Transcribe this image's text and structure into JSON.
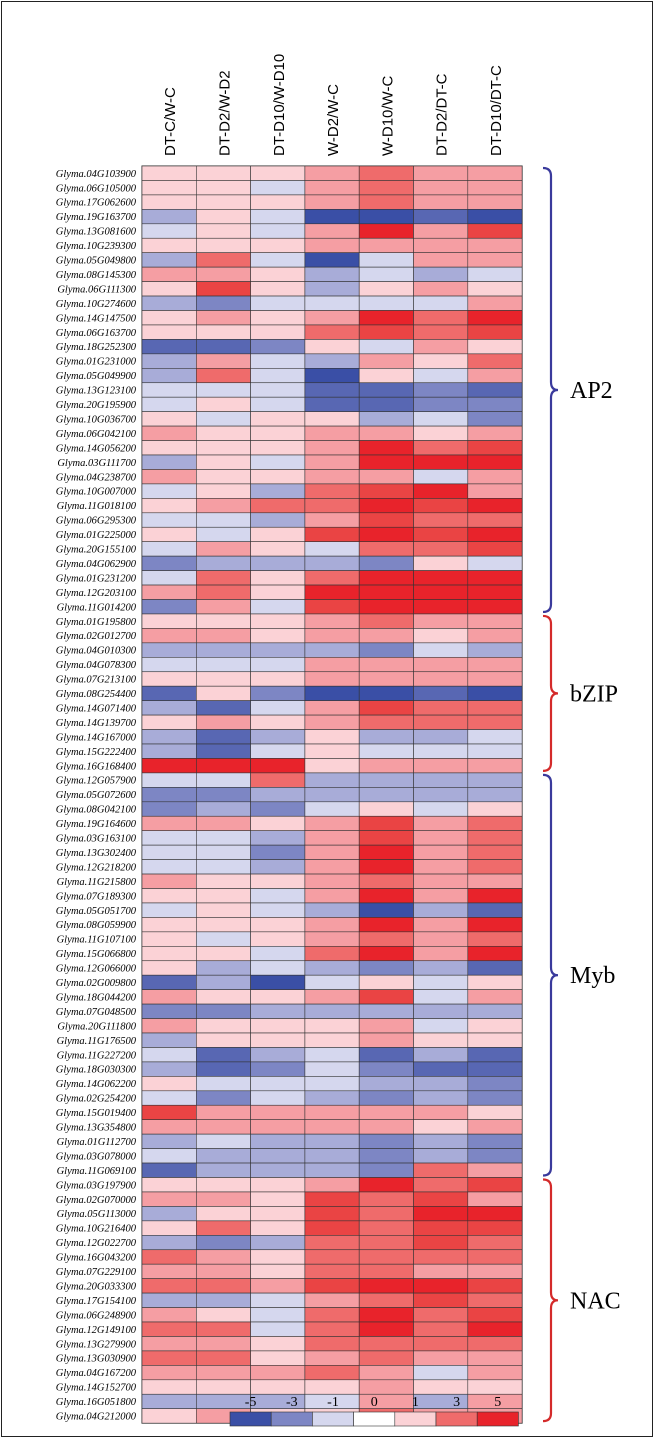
{
  "chart_data": {
    "type": "heatmap",
    "title": "",
    "columns": [
      "DT-C/W-C",
      "DT-D2/W-D2",
      "DT-D10/W-D10",
      "W-D2/W-C",
      "W-D10/W-C",
      "DT-D2/DT-C",
      "DT-D10/DT-C"
    ],
    "rows": [
      "Glyma.04G103900",
      "Glyma.06G105000",
      "Glyma.17G062600",
      "Glyma.19G163700",
      "Glyma.13G081600",
      "Glyma.10G239300",
      "Glyma.05G049800",
      "Glyma.08G145300",
      "Glyma.06G111300",
      "Glyma.10G274600",
      "Glyma.14G147500",
      "Glyma.06G163700",
      "Glyma.18G252300",
      "Glyma.01G231000",
      "Glyma.05G049900",
      "Glyma.13G123100",
      "Glyma.20G195900",
      "Glyma.10G036700",
      "Glyma.06G042100",
      "Glyma.14G056200",
      "Glyma.03G111700",
      "Glyma.04G238700",
      "Glyma.10G007000",
      "Glyma.11G018100",
      "Glyma.06G295300",
      "Glyma.01G225000",
      "Glyma.20G155100",
      "Glyma.04G062900",
      "Glyma.01G231200",
      "Glyma.12G203100",
      "Glyma.11G014200",
      "Glyma.01G195800",
      "Glyma.02G012700",
      "Glyma.04G010300",
      "Glyma.04G078300",
      "Glyma.07G213100",
      "Glyma.08G254400",
      "Glyma.14G071400",
      "Glyma.14G139700",
      "Glyma.14G167000",
      "Glyma.15G222400",
      "Glyma.16G168400",
      "Glyma.12G057900",
      "Glyma.05G072600",
      "Glyma.08G042100",
      "Glyma.19G164600",
      "Glyma.03G163100",
      "Glyma.13G302400",
      "Glyma.12G218200",
      "Glyma.11G215800",
      "Glyma.07G189300",
      "Glyma.05G051700",
      "Glyma.08G059900",
      "Glyma.11G107100",
      "Glyma.15G066800",
      "Glyma.12G066000",
      "Glyma.02G009800",
      "Glyma.18G044200",
      "Glyma.07G048500",
      "Glyma.20G111800",
      "Glyma.11G176500",
      "Glyma.11G227200",
      "Glyma.18G030300",
      "Glyma.14G062200",
      "Glyma.02G254200",
      "Glyma.15G019400",
      "Glyma.13G354800",
      "Glyma.01G112700",
      "Glyma.03G078000",
      "Glyma.11G069100",
      "Glyma.03G197900",
      "Glyma.02G070000",
      "Glyma.05G113000",
      "Glyma.10G216400",
      "Glyma.12G022700",
      "Glyma.16G043200",
      "Glyma.07G229100",
      "Glyma.20G033300",
      "Glyma.17G154100",
      "Glyma.06G248900",
      "Glyma.12G149100",
      "Glyma.13G279900",
      "Glyma.13G030900",
      "Glyma.04G167200",
      "Glyma.14G152700",
      "Glyma.16G051800",
      "Glyma.04G212000"
    ],
    "values": [
      [
        1,
        1,
        1,
        2,
        3,
        2,
        2
      ],
      [
        1,
        1,
        -1,
        2,
        3,
        2,
        2
      ],
      [
        1,
        1,
        1,
        2,
        3,
        2,
        2
      ],
      [
        -2,
        1,
        -1,
        -5,
        -5,
        -4,
        -5
      ],
      [
        -1,
        1,
        -1,
        2,
        5,
        2,
        4
      ],
      [
        1,
        1,
        1,
        2,
        2,
        2,
        2
      ],
      [
        -2,
        3,
        -1,
        -5,
        -1,
        2,
        2
      ],
      [
        2,
        2,
        1,
        -2,
        -1,
        -2,
        -1
      ],
      [
        1,
        4,
        1,
        -2,
        1,
        2,
        1
      ],
      [
        -2,
        -3,
        -1,
        -1,
        -1,
        -1,
        2
      ],
      [
        1,
        2,
        1,
        2,
        5,
        3,
        5
      ],
      [
        1,
        1,
        1,
        3,
        4,
        3,
        4
      ],
      [
        -4,
        -4,
        -3,
        1,
        -1,
        2,
        1
      ],
      [
        -2,
        2,
        -1,
        -2,
        2,
        1,
        3
      ],
      [
        -2,
        3,
        -1,
        -5,
        1,
        -1,
        2
      ],
      [
        -1,
        -1,
        -1,
        -4,
        -4,
        -3,
        -4
      ],
      [
        -1,
        1,
        -1,
        -4,
        -4,
        -3,
        -3
      ],
      [
        1,
        -1,
        1,
        1,
        -2,
        -1,
        -3
      ],
      [
        2,
        1,
        1,
        2,
        2,
        1,
        2
      ],
      [
        1,
        1,
        1,
        2,
        5,
        3,
        4
      ],
      [
        -2,
        1,
        -1,
        2,
        5,
        5,
        5
      ],
      [
        2,
        1,
        1,
        2,
        2,
        -1,
        2
      ],
      [
        -1,
        1,
        -2,
        3,
        4,
        5,
        2
      ],
      [
        1,
        2,
        3,
        3,
        5,
        4,
        5
      ],
      [
        -1,
        -1,
        -2,
        2,
        4,
        3,
        3
      ],
      [
        1,
        -1,
        1,
        4,
        5,
        4,
        5
      ],
      [
        -1,
        2,
        1,
        -1,
        3,
        3,
        4
      ],
      [
        -3,
        -2,
        -2,
        -2,
        -3,
        1,
        -1
      ],
      [
        -1,
        3,
        1,
        3,
        5,
        5,
        5
      ],
      [
        2,
        3,
        1,
        5,
        5,
        5,
        5
      ],
      [
        -3,
        2,
        -1,
        4,
        5,
        5,
        5
      ],
      [
        1,
        1,
        1,
        2,
        3,
        2,
        2
      ],
      [
        2,
        2,
        1,
        2,
        2,
        1,
        2
      ],
      [
        -2,
        -2,
        -2,
        -2,
        -3,
        -1,
        -2
      ],
      [
        -1,
        -1,
        -1,
        2,
        2,
        2,
        2
      ],
      [
        1,
        1,
        1,
        2,
        2,
        2,
        2
      ],
      [
        -4,
        1,
        -3,
        -5,
        -5,
        -4,
        -5
      ],
      [
        -2,
        -4,
        -1,
        2,
        4,
        3,
        3
      ],
      [
        1,
        2,
        1,
        2,
        3,
        3,
        3
      ],
      [
        -2,
        -4,
        -2,
        1,
        -2,
        -2,
        -1
      ],
      [
        -2,
        -4,
        -1,
        1,
        -1,
        -1,
        -1
      ],
      [
        5,
        5,
        5,
        1,
        2,
        2,
        2
      ],
      [
        -1,
        -1,
        3,
        -2,
        -2,
        -2,
        -2
      ],
      [
        -3,
        -3,
        -2,
        -2,
        -2,
        -2,
        -2
      ],
      [
        -3,
        -2,
        -3,
        -1,
        1,
        -1,
        1
      ],
      [
        2,
        2,
        1,
        2,
        4,
        2,
        3
      ],
      [
        -1,
        -1,
        -2,
        2,
        4,
        2,
        3
      ],
      [
        -1,
        -1,
        -3,
        2,
        5,
        2,
        3
      ],
      [
        -1,
        -1,
        -2,
        2,
        5,
        2,
        3
      ],
      [
        2,
        1,
        1,
        2,
        3,
        2,
        2
      ],
      [
        1,
        1,
        -1,
        2,
        5,
        2,
        5
      ],
      [
        -1,
        1,
        -1,
        -2,
        -5,
        -2,
        -4
      ],
      [
        1,
        1,
        1,
        2,
        5,
        2,
        5
      ],
      [
        1,
        -1,
        1,
        2,
        3,
        2,
        3
      ],
      [
        1,
        1,
        -1,
        3,
        5,
        2,
        5
      ],
      [
        1,
        -2,
        -1,
        -2,
        -3,
        -2,
        -4
      ],
      [
        -4,
        -2,
        -5,
        -1,
        1,
        -1,
        1
      ],
      [
        2,
        1,
        1,
        2,
        4,
        -1,
        2
      ],
      [
        -3,
        -3,
        -2,
        -2,
        -2,
        -2,
        -2
      ],
      [
        2,
        1,
        1,
        1,
        2,
        -1,
        1
      ],
      [
        -2,
        1,
        1,
        1,
        2,
        1,
        1
      ],
      [
        -1,
        -4,
        -2,
        -1,
        -4,
        -2,
        -4
      ],
      [
        -2,
        -4,
        -3,
        -1,
        -3,
        -4,
        -4
      ],
      [
        1,
        -1,
        -1,
        -1,
        -2,
        -2,
        -3
      ],
      [
        -1,
        -3,
        -1,
        -2,
        -3,
        -2,
        -3
      ],
      [
        4,
        2,
        2,
        2,
        2,
        2,
        1
      ],
      [
        2,
        2,
        2,
        2,
        2,
        1,
        2
      ],
      [
        -2,
        -1,
        -2,
        -2,
        -3,
        -2,
        -3
      ],
      [
        -1,
        -2,
        -2,
        -2,
        -3,
        -2,
        -3
      ],
      [
        -4,
        -2,
        -2,
        -2,
        -3,
        3,
        2
      ],
      [
        1,
        1,
        1,
        2,
        5,
        3,
        4
      ],
      [
        2,
        2,
        1,
        4,
        3,
        4,
        2
      ],
      [
        -2,
        1,
        1,
        4,
        3,
        5,
        5
      ],
      [
        1,
        3,
        1,
        4,
        3,
        4,
        4
      ],
      [
        -2,
        -3,
        -2,
        3,
        3,
        4,
        3
      ],
      [
        3,
        2,
        1,
        3,
        3,
        3,
        3
      ],
      [
        2,
        2,
        1,
        3,
        3,
        2,
        2
      ],
      [
        3,
        3,
        2,
        4,
        5,
        5,
        4
      ],
      [
        -2,
        -2,
        -1,
        2,
        3,
        4,
        3
      ],
      [
        2,
        1,
        -1,
        3,
        5,
        3,
        4
      ],
      [
        3,
        3,
        -1,
        3,
        5,
        3,
        5
      ],
      [
        2,
        2,
        1,
        3,
        3,
        3,
        3
      ],
      [
        3,
        3,
        1,
        2,
        3,
        2,
        2
      ],
      [
        2,
        2,
        2,
        3,
        2,
        -1,
        2
      ],
      [
        1,
        1,
        1,
        1,
        2,
        1,
        1
      ],
      [
        -2,
        -2,
        -2,
        -1,
        2,
        -2,
        2
      ],
      [
        1,
        2,
        1,
        1,
        3,
        2,
        2
      ]
    ],
    "groups": [
      {
        "label": "AP2",
        "start": 0,
        "end": 31,
        "color": "#3a3a9c"
      },
      {
        "label": "bZIP",
        "start": 31,
        "end": 42,
        "color": "#d42a2a"
      },
      {
        "label": "Myb",
        "start": 42,
        "end": 70,
        "color": "#3a3a9c"
      },
      {
        "label": "NAC",
        "start": 70,
        "end": 87,
        "color": "#d42a2a"
      }
    ],
    "legend": {
      "ticks": [
        "-5",
        "-3",
        "-1",
        "0",
        "1",
        "3",
        "5"
      ],
      "colors": [
        "#3a4fa6",
        "#7d86c4",
        "#d5d7ee",
        "#ffffff",
        "#fbd2d6",
        "#ef6b6b",
        "#e8232b"
      ]
    },
    "color_scale": {
      "-5": "#3a4fa6",
      "-4": "#5867b3",
      "-3": "#7d86c4",
      "-2": "#a8acd8",
      "-1": "#d5d7ee",
      "0": "#ffffff",
      "1": "#fbd2d6",
      "2": "#f59ea3",
      "3": "#ef6b6b",
      "4": "#ea4444",
      "5": "#e8232b"
    }
  }
}
